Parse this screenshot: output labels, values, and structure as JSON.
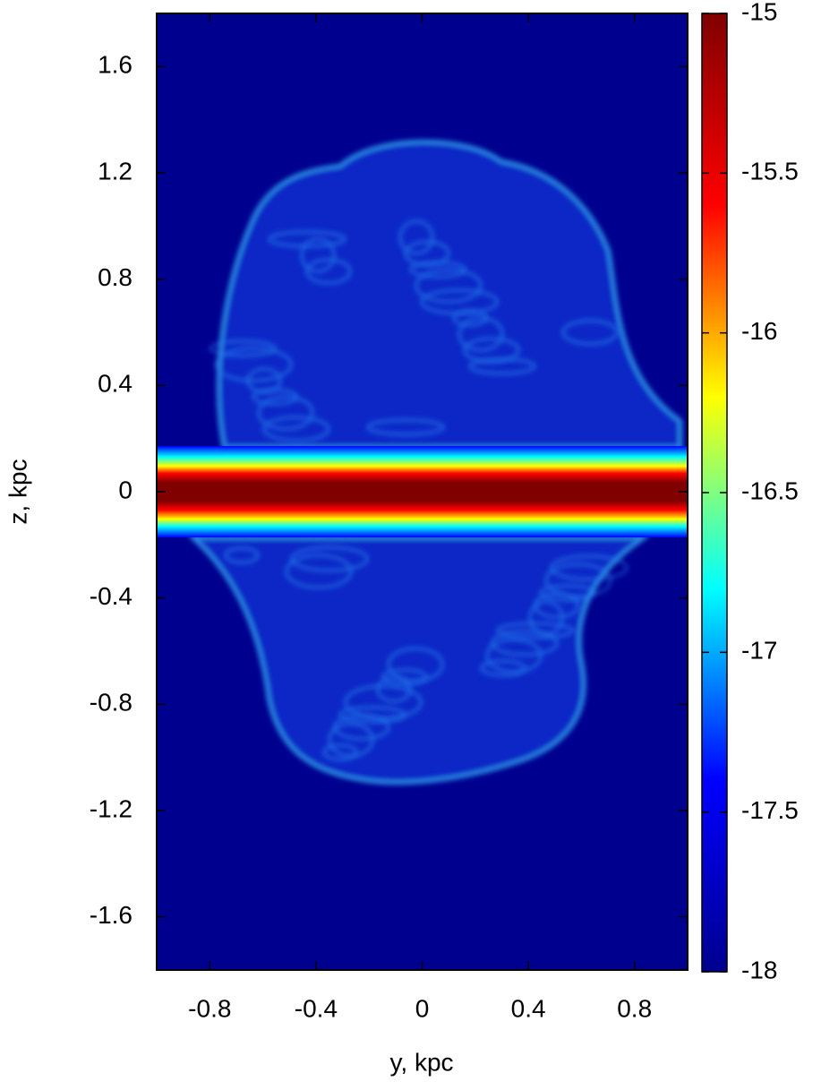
{
  "chart_data": {
    "type": "heatmap",
    "x_label": "y, kpc",
    "y_label": "z, kpc",
    "xlim": [
      -1,
      1
    ],
    "ylim": [
      -1.8,
      1.8
    ],
    "xticks": [
      -0.8,
      -0.4,
      0,
      0.4,
      0.8
    ],
    "yticks": [
      -1.6,
      -1.2,
      -0.8,
      -0.4,
      0,
      0.4,
      0.8,
      1.2,
      1.6
    ],
    "colorbar": {
      "lim": [
        -18,
        -15
      ],
      "ticks": [
        -18,
        -17.5,
        -17,
        -16.5,
        -16,
        -15.5,
        -15
      ],
      "colormap": [
        "#00008f",
        "#0000ff",
        "#00ffff",
        "#ffff00",
        "#ff0000",
        "#800000"
      ]
    }
  }
}
